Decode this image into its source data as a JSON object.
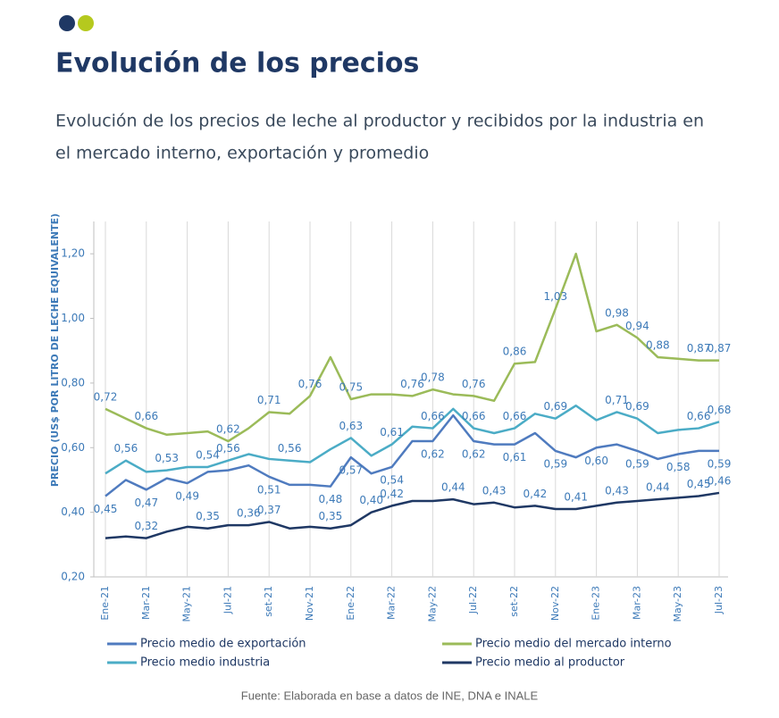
{
  "header": {
    "title": "Evolución de los precios",
    "subtitle_lines": [
      "Evolución de los precios de leche al productor y recibidos por la industria en",
      "el mercado interno, exportación y promedio"
    ]
  },
  "chart_data": {
    "type": "line",
    "y_label": "PRECIO (US$ POR LITRO DE LECHE EQUIVALENTE)",
    "categories": [
      "Ene-21",
      null,
      "Mar-21",
      null,
      "May-21",
      null,
      "Jul-21",
      null,
      "set-21",
      null,
      "Nov-21",
      null,
      "Ene-22",
      null,
      "Mar-22",
      null,
      "May-22",
      null,
      "Jul-22",
      null,
      "set-22",
      null,
      "Nov-22",
      null,
      "Ene-23",
      null,
      "Mar-23",
      null,
      "May-23",
      null,
      "Jul-23"
    ],
    "ylim": [
      0.2,
      1.3
    ],
    "yticks": [
      {
        "value": 0.2,
        "label": "0,20"
      },
      {
        "value": 0.4,
        "label": "0,40"
      },
      {
        "value": 0.6,
        "label": "0,60"
      },
      {
        "value": 0.8,
        "label": "0,80"
      },
      {
        "value": 1.0,
        "label": "1,00"
      },
      {
        "value": 1.2,
        "label": "1,20"
      }
    ],
    "grid": true,
    "label_color": "#3d7ab8",
    "series": [
      {
        "name": "Precio medio de exportación",
        "color": "#4f7bbf",
        "label_side": "below",
        "values": [
          0.45,
          0.5,
          0.47,
          0.505,
          0.49,
          0.525,
          0.53,
          0.545,
          0.51,
          0.485,
          0.485,
          0.48,
          0.57,
          0.52,
          0.54,
          0.62,
          0.62,
          0.7,
          0.62,
          0.61,
          0.61,
          0.645,
          0.59,
          0.57,
          0.6,
          0.61,
          0.59,
          0.565,
          0.58,
          0.59,
          0.59
        ],
        "value_labels": [
          "0,45",
          null,
          "0,47",
          null,
          "0,49",
          null,
          null,
          null,
          "0,51",
          null,
          null,
          "0,48",
          "0,57",
          null,
          "0,54",
          null,
          "0,62",
          null,
          "0,62",
          null,
          "0,61",
          null,
          "0,59",
          null,
          "0,60",
          null,
          "0,59",
          null,
          "0,58",
          null,
          "0,59"
        ]
      },
      {
        "name": "Precio medio del mercado interno",
        "color": "#9bbb59",
        "label_side": "above",
        "values": [
          0.72,
          0.69,
          0.66,
          0.64,
          0.645,
          0.65,
          0.62,
          0.66,
          0.71,
          0.705,
          0.76,
          0.88,
          0.75,
          0.765,
          0.765,
          0.76,
          0.78,
          0.765,
          0.76,
          0.745,
          0.86,
          0.865,
          1.03,
          1.2,
          0.96,
          0.98,
          0.94,
          0.88,
          0.875,
          0.87,
          0.87
        ],
        "value_labels": [
          "0,72",
          null,
          "0,66",
          null,
          null,
          null,
          "0,62",
          null,
          "0,71",
          null,
          "0,76",
          null,
          "0,75",
          null,
          null,
          "0,76",
          "0,78",
          null,
          "0,76",
          null,
          "0,86",
          null,
          "1,03",
          null,
          null,
          "0,98",
          "0,94",
          "0,88",
          null,
          "0,87",
          "0,87"
        ]
      },
      {
        "name": "Precio medio industria",
        "color": "#4bacc6",
        "label_side": "above",
        "values": [
          0.52,
          0.56,
          0.525,
          0.53,
          0.54,
          0.54,
          0.56,
          0.58,
          0.565,
          0.56,
          0.555,
          0.595,
          0.63,
          0.575,
          0.61,
          0.665,
          0.66,
          0.72,
          0.66,
          0.645,
          0.66,
          0.705,
          0.69,
          0.73,
          0.685,
          0.71,
          0.69,
          0.645,
          0.655,
          0.66,
          0.68
        ],
        "value_labels": [
          null,
          "0,56",
          null,
          "0,53",
          null,
          "0,54",
          "0,56",
          null,
          null,
          "0,56",
          null,
          null,
          "0,63",
          null,
          "0,61",
          null,
          "0,66",
          null,
          "0,66",
          null,
          "0,66",
          null,
          "0,69",
          null,
          null,
          "0,71",
          "0,69",
          null,
          null,
          "0,66",
          "0,68"
        ]
      },
      {
        "name": "Precio medio al productor",
        "color": "#1f3864",
        "label_side": "above",
        "values": [
          0.32,
          0.325,
          0.32,
          0.34,
          0.355,
          0.35,
          0.36,
          0.36,
          0.37,
          0.35,
          0.355,
          0.35,
          0.36,
          0.4,
          0.42,
          0.435,
          0.435,
          0.44,
          0.425,
          0.43,
          0.415,
          0.42,
          0.41,
          0.41,
          0.42,
          0.43,
          0.435,
          0.44,
          0.445,
          0.45,
          0.46
        ],
        "value_labels": [
          null,
          null,
          "0,32",
          null,
          null,
          "0,35",
          null,
          "0,36",
          "0,37",
          null,
          null,
          "0,35",
          null,
          "0,40",
          "0,42",
          null,
          null,
          "0,44",
          null,
          "0,43",
          null,
          "0,42",
          null,
          "0,41",
          null,
          "0,43",
          null,
          "0,44",
          null,
          "0,45",
          "0,46"
        ]
      }
    ],
    "source": "Fuente: Elaborada en base a datos de INE, DNA e INALE"
  }
}
